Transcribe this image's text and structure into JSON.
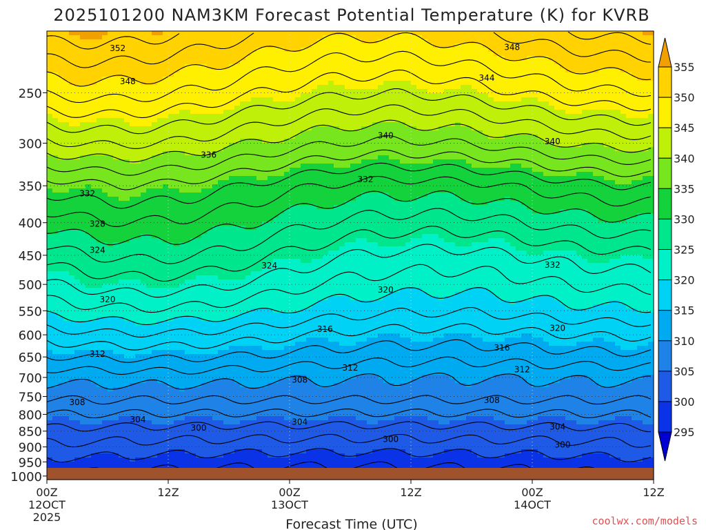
{
  "chart_data": {
    "type": "heatmap",
    "title": "2025101200 NAM3KM Forecast Potential Temperature (K) for KVRB",
    "xlabel": "Forecast Time (UTC)",
    "ylabel": "",
    "x_range_hours": [
      0,
      60
    ],
    "y_range_hpa": [
      1013,
      200
    ],
    "y_ticks": [
      250,
      300,
      350,
      400,
      450,
      500,
      550,
      600,
      650,
      700,
      750,
      800,
      850,
      900,
      950,
      1000
    ],
    "x_ticks": [
      {
        "hour": 0,
        "line1": "00Z",
        "line2": "12OCT",
        "line3": "2025"
      },
      {
        "hour": 12,
        "line1": "12Z",
        "line2": "",
        "line3": ""
      },
      {
        "hour": 24,
        "line1": "00Z",
        "line2": "13OCT",
        "line3": ""
      },
      {
        "hour": 36,
        "line1": "12Z",
        "line2": "",
        "line3": ""
      },
      {
        "hour": 48,
        "line1": "00Z",
        "line2": "14OCT",
        "line3": ""
      },
      {
        "hour": 60,
        "line1": "12Z",
        "line2": "",
        "line3": ""
      }
    ],
    "colorbar": {
      "levels": [
        295,
        300,
        305,
        310,
        315,
        320,
        325,
        330,
        335,
        340,
        345,
        350,
        355
      ],
      "colors": [
        "#0000d2",
        "#0a32e6",
        "#1e5ae6",
        "#1e82e6",
        "#00aaf0",
        "#00d2f5",
        "#00f0c8",
        "#00e68c",
        "#14d23c",
        "#78e61e",
        "#bef00a",
        "#fff000",
        "#ffd200",
        "#f0a000"
      ]
    },
    "contour_labels": [
      {
        "value": "352",
        "hour": 7.0,
        "hpa": 213
      },
      {
        "value": "348",
        "hour": 8.0,
        "hpa": 240
      },
      {
        "value": "336",
        "hour": 16.0,
        "hpa": 313
      },
      {
        "value": "332",
        "hour": 4.0,
        "hpa": 360
      },
      {
        "value": "328",
        "hour": 5.0,
        "hpa": 402
      },
      {
        "value": "324",
        "hour": 5.0,
        "hpa": 442
      },
      {
        "value": "320",
        "hour": 6.0,
        "hpa": 528
      },
      {
        "value": "312",
        "hour": 5.0,
        "hpa": 643
      },
      {
        "value": "308",
        "hour": 3.0,
        "hpa": 766
      },
      {
        "value": "304",
        "hour": 9.0,
        "hpa": 815
      },
      {
        "value": "300",
        "hour": 15.0,
        "hpa": 840
      },
      {
        "value": "324",
        "hour": 22.0,
        "hpa": 467
      },
      {
        "value": "308",
        "hour": 25.0,
        "hpa": 706
      },
      {
        "value": "304",
        "hour": 25.0,
        "hpa": 822
      },
      {
        "value": "316",
        "hour": 27.5,
        "hpa": 588
      },
      {
        "value": "312",
        "hour": 30.0,
        "hpa": 676
      },
      {
        "value": "332",
        "hour": 31.5,
        "hpa": 342
      },
      {
        "value": "340",
        "hour": 33.5,
        "hpa": 292
      },
      {
        "value": "320",
        "hour": 33.5,
        "hpa": 510
      },
      {
        "value": "300",
        "hour": 34.0,
        "hpa": 875
      },
      {
        "value": "348",
        "hour": 46.0,
        "hpa": 212
      },
      {
        "value": "344",
        "hour": 43.5,
        "hpa": 237
      },
      {
        "value": "340",
        "hour": 50.0,
        "hpa": 298
      },
      {
        "value": "332",
        "hour": 50.0,
        "hpa": 466
      },
      {
        "value": "316",
        "hour": 45.0,
        "hpa": 629
      },
      {
        "value": "312",
        "hour": 47.0,
        "hpa": 680
      },
      {
        "value": "320",
        "hour": 50.5,
        "hpa": 586
      },
      {
        "value": "308",
        "hour": 44.0,
        "hpa": 760
      },
      {
        "value": "304",
        "hour": 50.5,
        "hpa": 837
      },
      {
        "value": "300",
        "hour": 51.0,
        "hpa": 893
      }
    ],
    "profile_base_theta_k": {
      "pressure_hpa": [
        1013,
        950,
        900,
        850,
        800,
        750,
        700,
        650,
        600,
        550,
        500,
        450,
        400,
        350,
        300,
        250,
        200
      ],
      "theta_k": [
        297.5,
        299.5,
        301.5,
        303.5,
        306.0,
        308.5,
        310.5,
        313.5,
        316.5,
        320.0,
        323.0,
        326.0,
        329.5,
        333.5,
        340.0,
        346.5,
        353.0
      ]
    }
  },
  "watermark": "coolwx.com/models"
}
